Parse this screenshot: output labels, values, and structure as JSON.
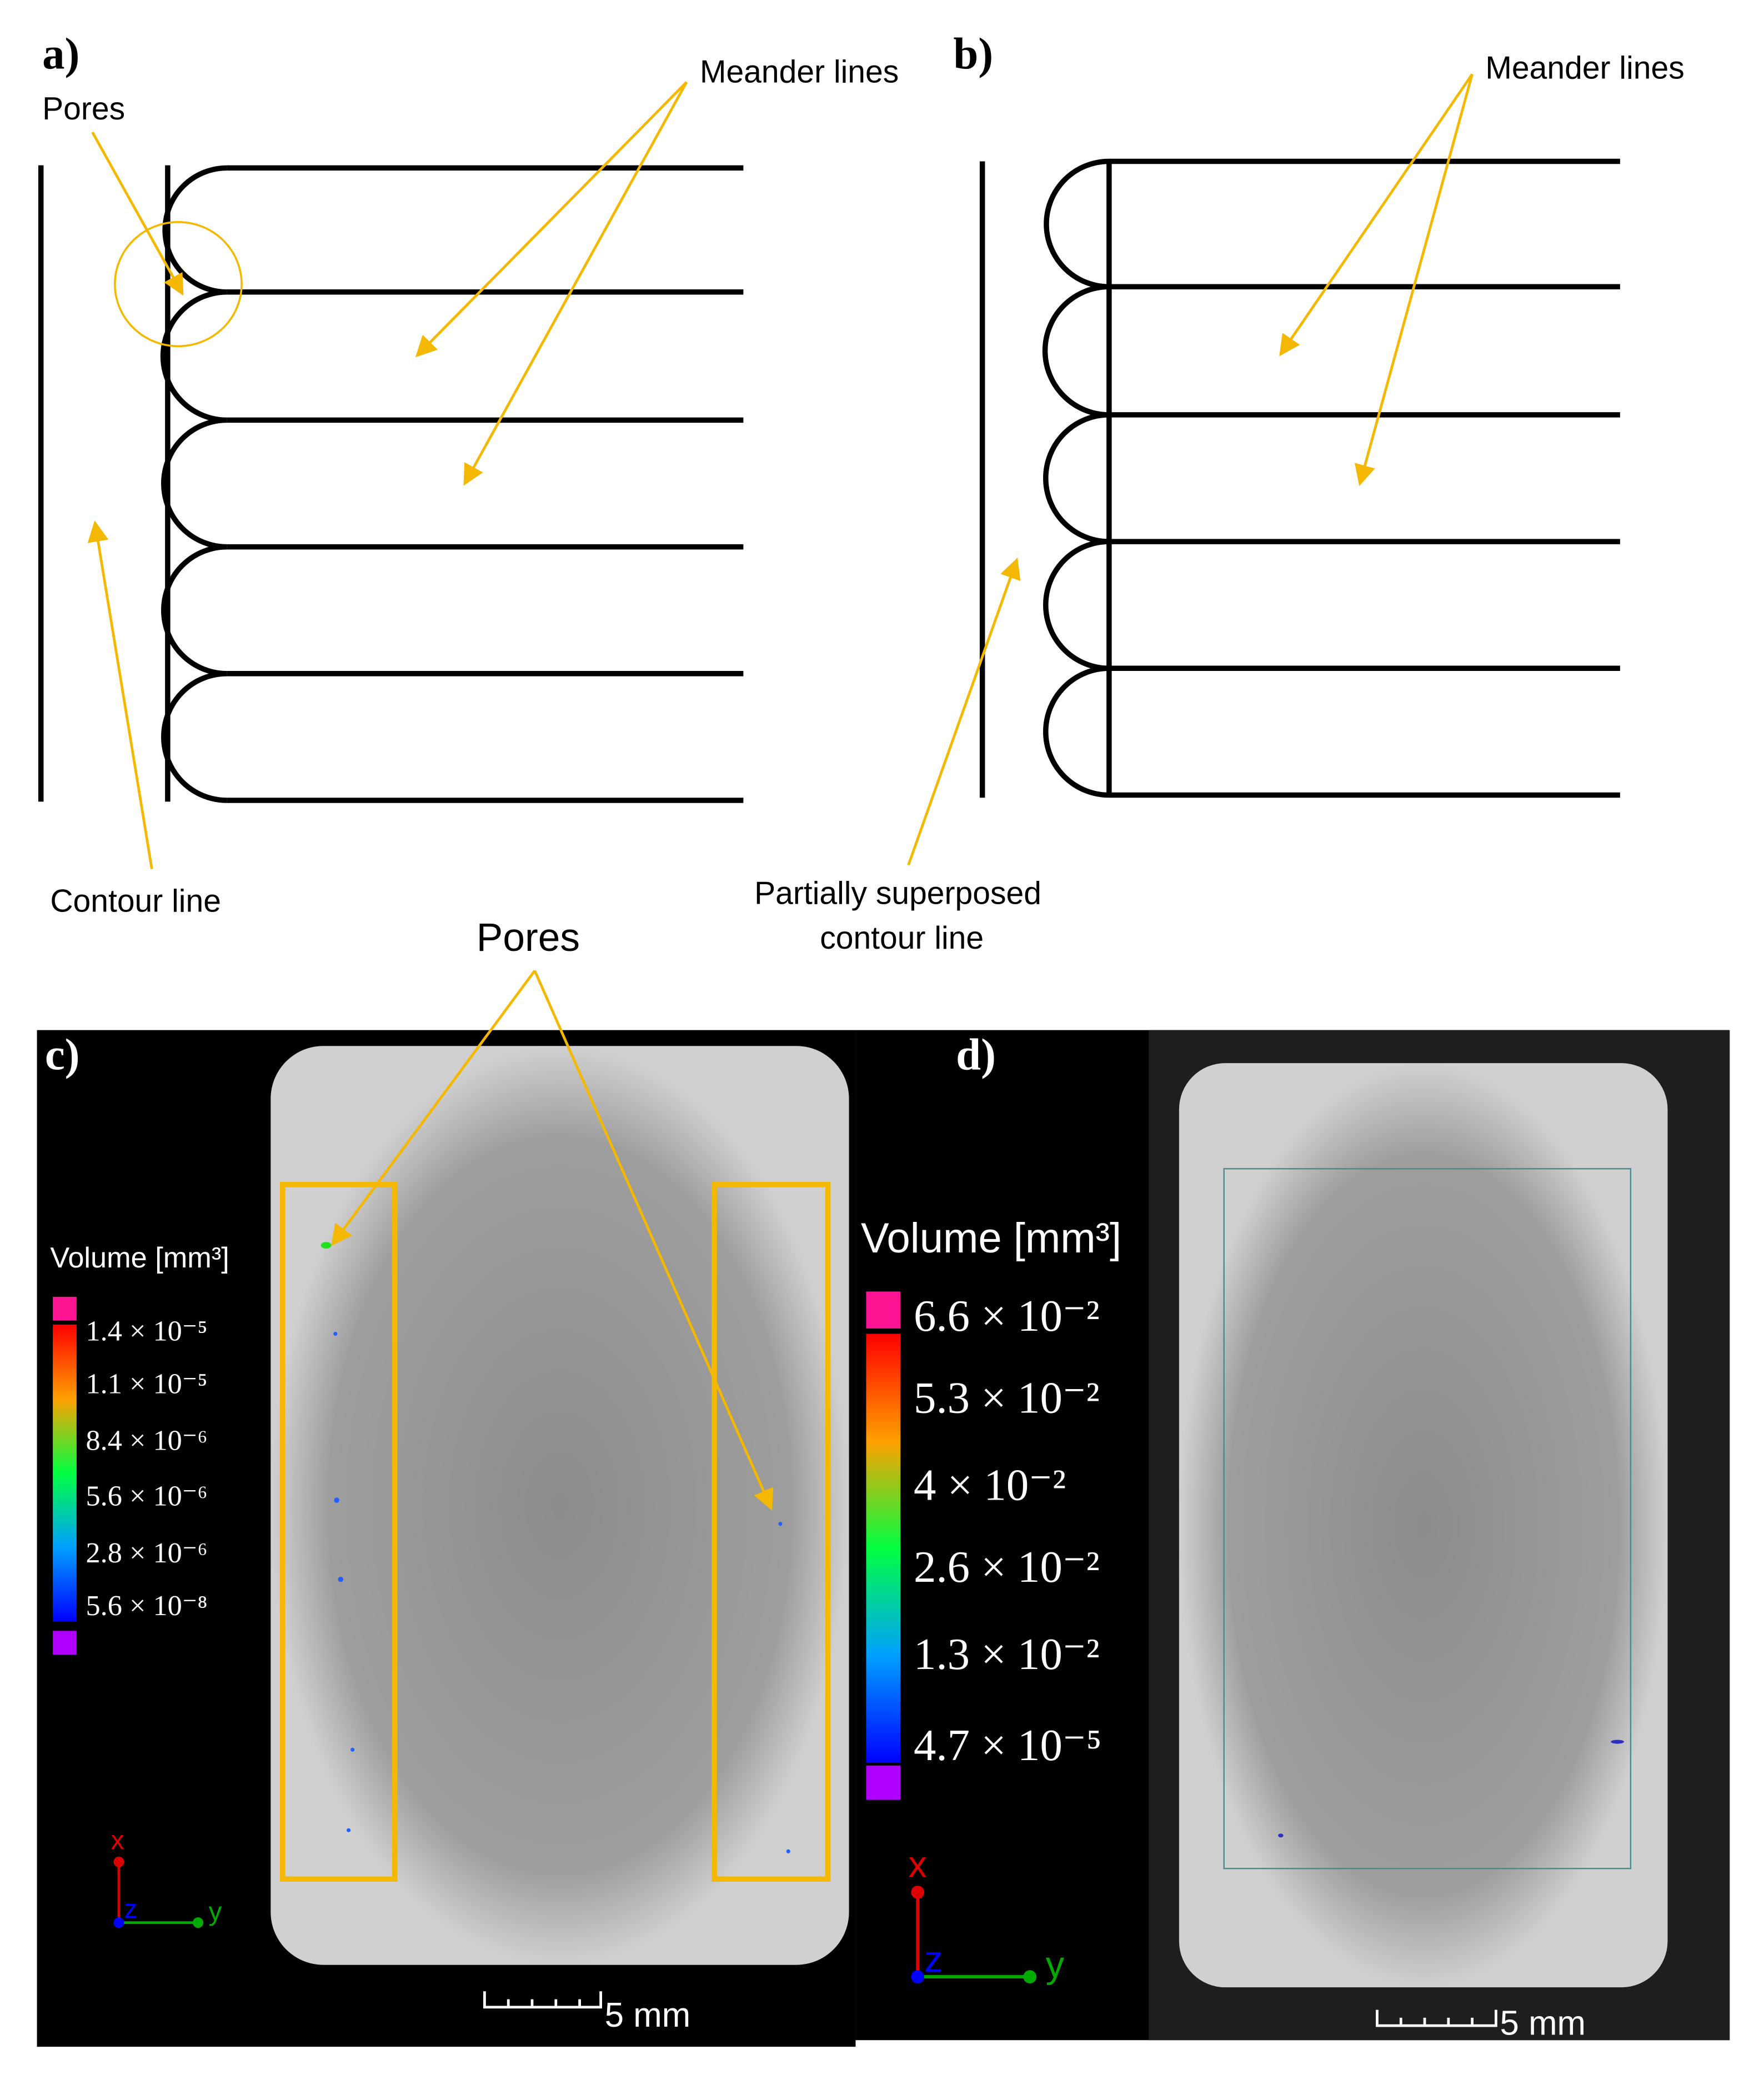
{
  "panels": {
    "a": {
      "label": "a)",
      "pores": "Pores",
      "meander": "Meander lines",
      "contour": "Contour line"
    },
    "b": {
      "label": "b)",
      "meander": "Meander lines",
      "contour": [
        "Partially superposed",
        "contour line"
      ]
    },
    "c": {
      "label": "c)",
      "pores": "Pores",
      "colorbar_title": "Volume [mm³]",
      "colorbar_labels": [
        "1.4 × 10⁻⁵",
        "1.1 × 10⁻⁵",
        "8.4 × 10⁻⁶",
        "5.6 × 10⁻⁶",
        "2.8 × 10⁻⁶",
        "5.6 × 10⁻⁸"
      ],
      "axes": [
        "x",
        "z",
        "y"
      ],
      "scale": "5 mm"
    },
    "d": {
      "label": "d)",
      "colorbar_title": "Volume [mm³]",
      "colorbar_labels": [
        "6.6 × 10⁻²",
        "5.3 × 10⁻²",
        "4 × 10⁻²",
        "2.6 × 10⁻²",
        "1.3 × 10⁻²",
        "4.7 × 10⁻⁵"
      ],
      "axes": [
        "x",
        "z",
        "y"
      ],
      "scale": "5 mm"
    }
  }
}
